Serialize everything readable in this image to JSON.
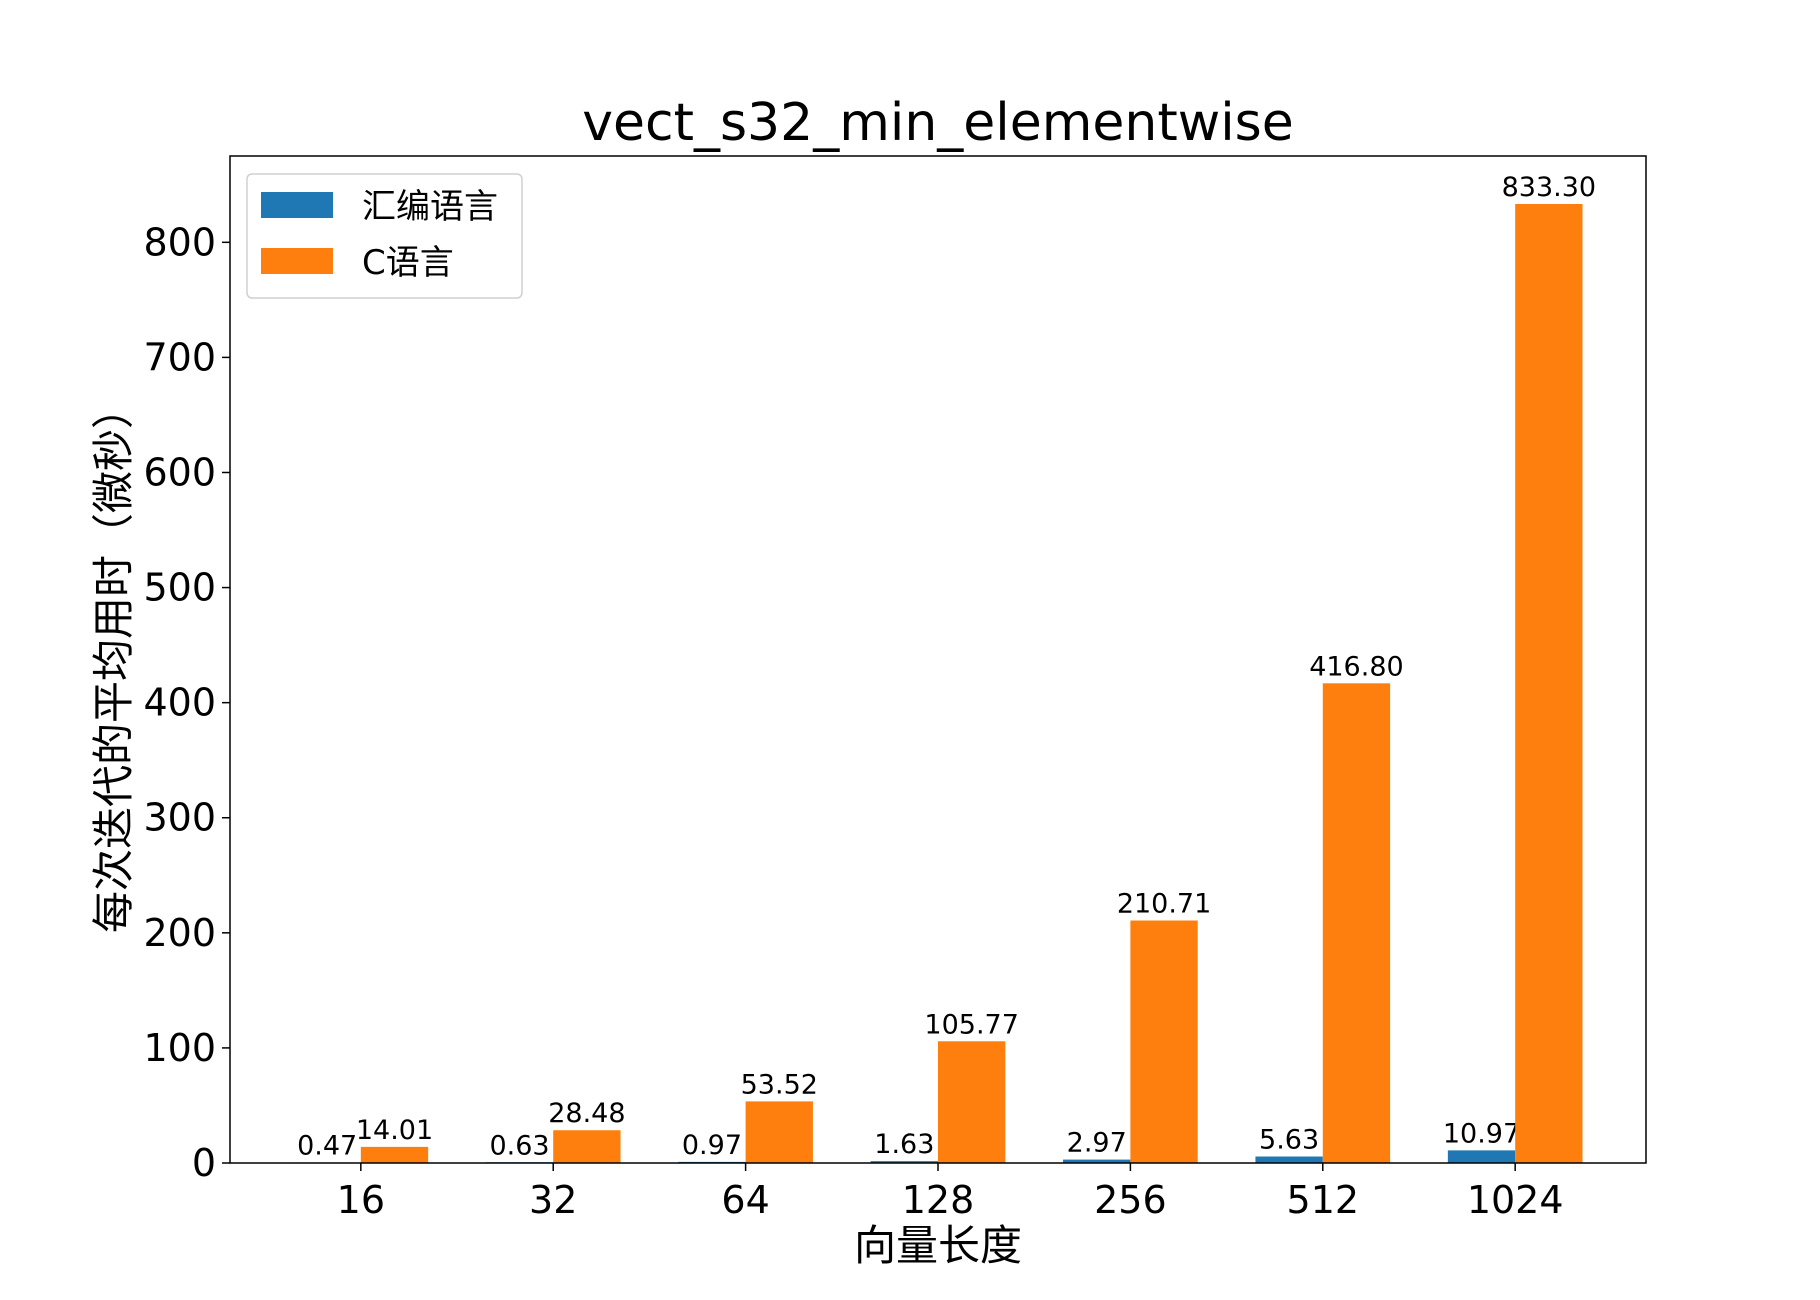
{
  "chart_data": {
    "type": "bar",
    "title": "vect_s32_min_elementwise",
    "xlabel": "向量长度",
    "ylabel": "每次迭代的平均用时（微秒）",
    "categories": [
      "16",
      "32",
      "64",
      "128",
      "256",
      "512",
      "1024"
    ],
    "series": [
      {
        "name": "汇编语言",
        "color": "#1f77b4",
        "values": [
          0.47,
          0.63,
          0.97,
          1.63,
          2.97,
          5.63,
          10.97
        ],
        "labels": [
          "0.47",
          "0.63",
          "0.97",
          "1.63",
          "2.97",
          "5.63",
          "10.97"
        ]
      },
      {
        "name": "C语言",
        "color": "#ff7f0e",
        "values": [
          14.01,
          28.48,
          53.52,
          105.77,
          210.71,
          416.8,
          833.3
        ],
        "labels": [
          "14.01",
          "28.48",
          "53.52",
          "105.77",
          "210.71",
          "416.80",
          "833.30"
        ]
      }
    ],
    "ylim": [
      0,
      875
    ],
    "yticks": [
      "0",
      "100",
      "200",
      "300",
      "400",
      "500",
      "600",
      "700",
      "800"
    ],
    "grid": false,
    "legend": "top-left"
  }
}
